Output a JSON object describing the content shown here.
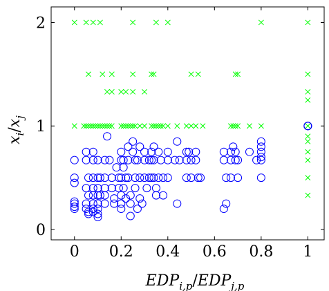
{
  "chart_data": {
    "type": "scatter",
    "title": "",
    "xlabel": {
      "base_left": "EDP",
      "sub_left": "i,p",
      "slash": "/",
      "base_right": "EDP",
      "sub_right": "j,p"
    },
    "ylabel": {
      "base_left": "x",
      "sub_left": "i",
      "slash": "/",
      "base_right": "x",
      "sub_right": "j"
    },
    "xlim": [
      -0.1,
      1.07
    ],
    "ylim": [
      -0.1,
      2.15
    ],
    "xticks": [
      0,
      0.2,
      0.4,
      0.6,
      0.8,
      1
    ],
    "xtick_labels": [
      "0",
      "0.2",
      "0.4",
      "0.6",
      "0.8",
      "1"
    ],
    "yticks": [
      0,
      1,
      2
    ],
    "ytick_labels": [
      "0",
      "1",
      "2"
    ],
    "grid": false,
    "series": [
      {
        "marker": "circle",
        "color": "#0000ff",
        "points": [
          [
            0,
            0.2
          ],
          [
            0,
            0.22
          ],
          [
            0,
            0.25
          ],
          [
            0,
            0.27
          ],
          [
            0,
            0.45
          ],
          [
            0,
            0.5
          ],
          [
            0,
            0.67
          ],
          [
            0.05,
            0.75
          ],
          [
            0.05,
            0.67
          ],
          [
            0.06,
            0.5
          ],
          [
            0.05,
            0.4
          ],
          [
            0.06,
            0.33
          ],
          [
            0.05,
            0.25
          ],
          [
            0.05,
            0.2
          ],
          [
            0.06,
            0.17
          ],
          [
            0.06,
            0.15
          ],
          [
            0.08,
            0.75
          ],
          [
            0.08,
            0.67
          ],
          [
            0.08,
            0.5
          ],
          [
            0.08,
            0.4
          ],
          [
            0.08,
            0.33
          ],
          [
            0.08,
            0.25
          ],
          [
            0.08,
            0.2
          ],
          [
            0.08,
            0.17
          ],
          [
            0.1,
            0.67
          ],
          [
            0.1,
            0.5
          ],
          [
            0.1,
            0.4
          ],
          [
            0.1,
            0.33
          ],
          [
            0.1,
            0.25
          ],
          [
            0.1,
            0.2
          ],
          [
            0.1,
            0.15
          ],
          [
            0.1,
            0.12
          ],
          [
            0.11,
            0.5
          ],
          [
            0.11,
            0.33
          ],
          [
            0.13,
            0.67
          ],
          [
            0.13,
            0.5
          ],
          [
            0.13,
            0.4
          ],
          [
            0.13,
            0.33
          ],
          [
            0.13,
            0.25
          ],
          [
            0.14,
            0.9
          ],
          [
            0.15,
            0.67
          ],
          [
            0.16,
            0.5
          ],
          [
            0.16,
            0.4
          ],
          [
            0.17,
            0.3
          ],
          [
            0.17,
            0.25
          ],
          [
            0.18,
            0.6
          ],
          [
            0.19,
            0.5
          ],
          [
            0.19,
            0.4
          ],
          [
            0.2,
            0.75
          ],
          [
            0.2,
            0.67
          ],
          [
            0.2,
            0.5
          ],
          [
            0.2,
            0.33
          ],
          [
            0.2,
            0.25
          ],
          [
            0.2,
            0.2
          ],
          [
            0.21,
            0.67
          ],
          [
            0.21,
            0.6
          ],
          [
            0.21,
            0.4
          ],
          [
            0.22,
            0.5
          ],
          [
            0.22,
            0.3
          ],
          [
            0.23,
            0.8
          ],
          [
            0.23,
            0.67
          ],
          [
            0.23,
            0.5
          ],
          [
            0.24,
            0.33
          ],
          [
            0.24,
            0.25
          ],
          [
            0.24,
            0.13
          ],
          [
            0.25,
            0.85
          ],
          [
            0.25,
            0.75
          ],
          [
            0.26,
            0.67
          ],
          [
            0.26,
            0.5
          ],
          [
            0.26,
            0.4
          ],
          [
            0.27,
            0.2
          ],
          [
            0.27,
            0.67
          ],
          [
            0.28,
            0.5
          ],
          [
            0.28,
            0.3
          ],
          [
            0.29,
            0.25
          ],
          [
            0.28,
            0.8
          ],
          [
            0.3,
            0.75
          ],
          [
            0.3,
            0.67
          ],
          [
            0.3,
            0.5
          ],
          [
            0.31,
            0.4
          ],
          [
            0.32,
            0.67
          ],
          [
            0.32,
            0.5
          ],
          [
            0.33,
            0.75
          ],
          [
            0.33,
            0.67
          ],
          [
            0.33,
            0.5
          ],
          [
            0.34,
            0.8
          ],
          [
            0.34,
            0.67
          ],
          [
            0.34,
            0.5
          ],
          [
            0.35,
            0.4
          ],
          [
            0.35,
            0.33
          ],
          [
            0.36,
            0.75
          ],
          [
            0.36,
            0.5
          ],
          [
            0.37,
            0.67
          ],
          [
            0.38,
            0.5
          ],
          [
            0.38,
            0.33
          ],
          [
            0.4,
            0.75
          ],
          [
            0.4,
            0.67
          ],
          [
            0.4,
            0.5
          ],
          [
            0.43,
            0.67
          ],
          [
            0.44,
            0.85
          ],
          [
            0.44,
            0.25
          ],
          [
            0.45,
            0.67
          ],
          [
            0.48,
            0.75
          ],
          [
            0.48,
            0.67
          ],
          [
            0.48,
            0.5
          ],
          [
            0.49,
            0.75
          ],
          [
            0.5,
            0.67
          ],
          [
            0.5,
            0.5
          ],
          [
            0.52,
            0.75
          ],
          [
            0.52,
            0.67
          ],
          [
            0.53,
            0.5
          ],
          [
            0.54,
            0.5
          ],
          [
            0.64,
            0.75
          ],
          [
            0.64,
            0.67
          ],
          [
            0.64,
            0.2
          ],
          [
            0.65,
            0.5
          ],
          [
            0.65,
            0.25
          ],
          [
            0.67,
            0.75
          ],
          [
            0.67,
            0.67
          ],
          [
            0.67,
            0.5
          ],
          [
            0.68,
            0.8
          ],
          [
            0.69,
            0.75
          ],
          [
            0.69,
            0.67
          ],
          [
            0.7,
            0.67
          ],
          [
            0.7,
            0.5
          ],
          [
            0.75,
            0.75
          ],
          [
            0.78,
            0.67
          ],
          [
            0.8,
            0.85
          ],
          [
            0.8,
            0.8
          ],
          [
            0.8,
            0.75
          ],
          [
            0.8,
            0.7
          ],
          [
            0.8,
            0.67
          ],
          [
            0.8,
            0.5
          ],
          [
            1,
            1
          ],
          [
            1,
            1
          ],
          [
            1,
            1
          ],
          [
            1,
            1
          ]
        ]
      },
      {
        "marker": "cross",
        "color": "#00ff00",
        "points": [
          [
            0,
            2
          ],
          [
            0.05,
            2
          ],
          [
            0.08,
            2
          ],
          [
            0.11,
            2
          ],
          [
            0.25,
            2
          ],
          [
            0.35,
            2
          ],
          [
            0.4,
            2
          ],
          [
            0.8,
            2
          ],
          [
            1,
            2
          ],
          [
            0.06,
            1.5
          ],
          [
            0.12,
            1.5
          ],
          [
            0.16,
            1.5
          ],
          [
            0.25,
            1.5
          ],
          [
            0.33,
            1.5
          ],
          [
            0.34,
            1.5
          ],
          [
            0.5,
            1.5
          ],
          [
            0.53,
            1.5
          ],
          [
            0.69,
            1.5
          ],
          [
            0.7,
            1.5
          ],
          [
            1,
            1.5
          ],
          [
            0.14,
            1.33
          ],
          [
            0.16,
            1.33
          ],
          [
            0.2,
            1.33
          ],
          [
            0.22,
            1.33
          ],
          [
            0.25,
            1.33
          ],
          [
            0.3,
            1.33
          ],
          [
            1,
            1.33
          ],
          [
            1,
            1.25
          ],
          [
            0,
            1
          ],
          [
            0.04,
            1
          ],
          [
            0.05,
            1
          ],
          [
            0.06,
            1
          ],
          [
            0.07,
            1
          ],
          [
            0.08,
            1
          ],
          [
            0.09,
            1
          ],
          [
            0.1,
            1
          ],
          [
            0.11,
            1
          ],
          [
            0.12,
            1
          ],
          [
            0.13,
            1
          ],
          [
            0.14,
            1
          ],
          [
            0.15,
            1
          ],
          [
            0.16,
            1
          ],
          [
            0.2,
            1
          ],
          [
            0.21,
            1
          ],
          [
            0.22,
            1
          ],
          [
            0.23,
            1
          ],
          [
            0.24,
            1
          ],
          [
            0.25,
            1
          ],
          [
            0.26,
            1
          ],
          [
            0.28,
            1
          ],
          [
            0.3,
            1
          ],
          [
            0.33,
            1
          ],
          [
            0.34,
            1
          ],
          [
            0.35,
            1
          ],
          [
            0.36,
            1
          ],
          [
            0.37,
            1
          ],
          [
            0.38,
            1
          ],
          [
            0.4,
            1
          ],
          [
            0.44,
            1
          ],
          [
            0.48,
            1
          ],
          [
            0.5,
            1
          ],
          [
            0.52,
            1
          ],
          [
            0.55,
            1
          ],
          [
            0.67,
            1
          ],
          [
            0.68,
            1
          ],
          [
            0.69,
            1
          ],
          [
            0.7,
            1
          ],
          [
            0.75,
            1
          ],
          [
            0.8,
            1
          ],
          [
            1,
            1
          ],
          [
            1,
            0.9
          ],
          [
            1,
            0.85
          ],
          [
            1,
            0.75
          ],
          [
            1,
            0.67
          ],
          [
            1,
            0.5
          ],
          [
            1,
            0.33
          ]
        ]
      }
    ]
  }
}
